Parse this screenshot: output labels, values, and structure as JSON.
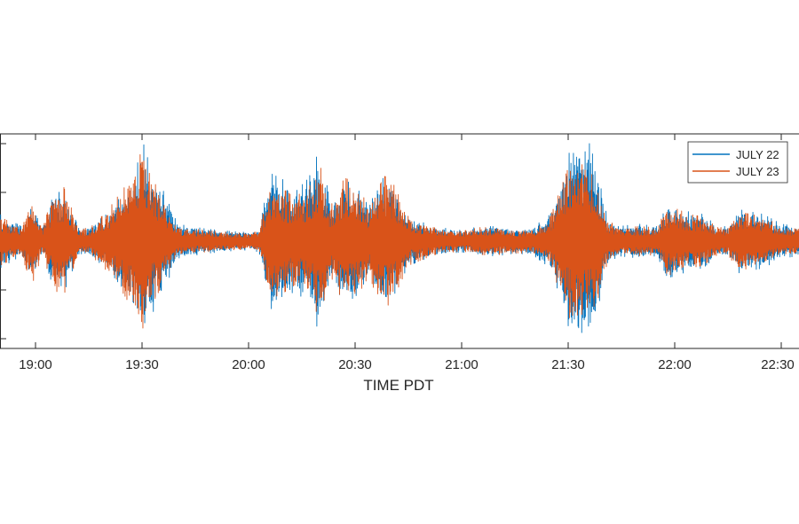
{
  "chart_data": {
    "type": "line",
    "title": "",
    "xlabel": "TIME PDT",
    "ylabel": "",
    "x_ticks": [
      "19:00",
      "19:30",
      "20:00",
      "20:30",
      "21:00",
      "21:30",
      "22:00",
      "22:30"
    ],
    "x_range": [
      "18:50",
      "22:35"
    ],
    "y_range": [
      -2.2,
      2.2
    ],
    "y_ticks": [
      -2,
      -1,
      0,
      1,
      2
    ],
    "y_tick_labels_visible": false,
    "grid": false,
    "legend_position": "top-right",
    "series": [
      {
        "name": "JULY 22",
        "color": "#0072BD",
        "envelope_times": [
          "18:50",
          "18:56",
          "18:59",
          "19:02",
          "19:05",
          "19:08",
          "19:12",
          "19:15",
          "19:20",
          "19:25",
          "19:28",
          "19:30",
          "19:32",
          "19:35",
          "19:40",
          "19:48",
          "19:55",
          "20:00",
          "20:03",
          "20:06",
          "20:10",
          "20:13",
          "20:17",
          "20:20",
          "20:23",
          "20:27",
          "20:30",
          "20:34",
          "20:37",
          "20:40",
          "20:45",
          "20:52",
          "21:00",
          "21:05",
          "21:10",
          "21:15",
          "21:20",
          "21:25",
          "21:28",
          "21:31",
          "21:34",
          "21:36",
          "21:38",
          "21:41",
          "21:44",
          "21:50",
          "21:55",
          "21:58",
          "22:01",
          "22:04",
          "22:08",
          "22:12",
          "22:15",
          "22:18",
          "22:25",
          "22:30",
          "22:35"
        ],
        "envelope": [
          0.55,
          0.3,
          0.7,
          0.25,
          0.95,
          1.05,
          0.3,
          0.28,
          0.55,
          1.0,
          1.3,
          2.1,
          1.6,
          1.2,
          0.35,
          0.25,
          0.2,
          0.18,
          0.22,
          1.4,
          1.25,
          1.0,
          1.3,
          1.9,
          0.8,
          1.25,
          1.15,
          0.7,
          1.3,
          1.25,
          0.5,
          0.3,
          0.22,
          0.3,
          0.3,
          0.25,
          0.28,
          0.55,
          1.2,
          2.0,
          2.1,
          2.0,
          1.5,
          0.5,
          0.3,
          0.35,
          0.3,
          0.75,
          0.7,
          0.6,
          0.55,
          0.3,
          0.3,
          0.65,
          0.55,
          0.35,
          0.3
        ]
      },
      {
        "name": "JULY 23",
        "color": "#D95319",
        "envelope_times": [
          "18:50",
          "18:56",
          "18:59",
          "19:02",
          "19:05",
          "19:08",
          "19:12",
          "19:15",
          "19:20",
          "19:25",
          "19:28",
          "19:30",
          "19:32",
          "19:35",
          "19:40",
          "19:48",
          "19:55",
          "20:00",
          "20:03",
          "20:06",
          "20:10",
          "20:13",
          "20:17",
          "20:20",
          "20:23",
          "20:27",
          "20:30",
          "20:34",
          "20:37",
          "20:40",
          "20:45",
          "20:52",
          "21:00",
          "21:05",
          "21:10",
          "21:15",
          "21:20",
          "21:25",
          "21:28",
          "21:31",
          "21:34",
          "21:36",
          "21:38",
          "21:41",
          "21:44",
          "21:50",
          "21:55",
          "21:58",
          "22:01",
          "22:04",
          "22:08",
          "22:12",
          "22:15",
          "22:18",
          "22:25",
          "22:30",
          "22:35"
        ],
        "envelope": [
          0.5,
          0.28,
          0.9,
          0.25,
          1.0,
          1.1,
          0.3,
          0.25,
          0.6,
          1.1,
          1.5,
          2.2,
          1.4,
          1.0,
          0.3,
          0.22,
          0.18,
          0.16,
          0.2,
          1.2,
          1.05,
          0.9,
          1.1,
          1.6,
          0.7,
          1.3,
          1.2,
          0.7,
          1.35,
          1.3,
          0.5,
          0.28,
          0.2,
          0.28,
          0.28,
          0.24,
          0.26,
          0.5,
          1.1,
          1.7,
          1.8,
          1.4,
          1.3,
          0.45,
          0.28,
          0.3,
          0.28,
          0.7,
          0.65,
          0.55,
          0.5,
          0.28,
          0.28,
          0.6,
          0.5,
          0.3,
          0.28
        ]
      }
    ]
  }
}
